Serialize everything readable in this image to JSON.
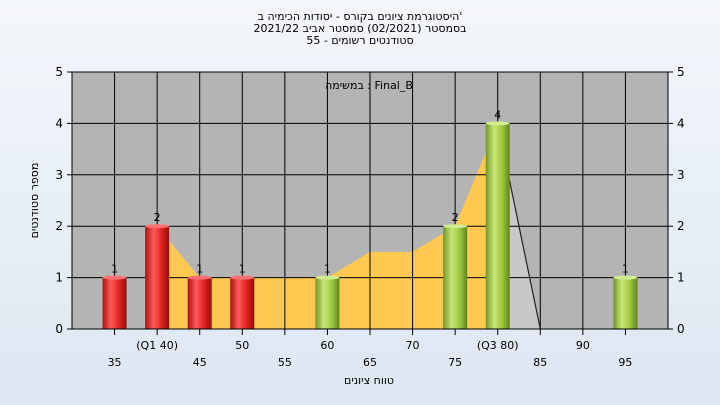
{
  "title_lines": [
    "היסטוגרמת ציונים בקורס - יסודות הכימיה ב'",
    "בסמסטר  (02/2021)  סמסטר אביב 2021/22",
    "סטודנטים רשומים - 55"
  ],
  "chart_data": {
    "type": "bar",
    "title": "היסטוגרמת ציונים בקורס - יסודות הכימיה ב' בסמסטר (02/2021) סמסטר אביב 2021/22 סטודנטים רשומים - 55",
    "xlabel": "טווח ציונים",
    "ylabel": "מספר סטודנטים",
    "annotation": "במשימה : Final_B",
    "ylim": [
      0,
      5
    ],
    "y_ticks": [
      0,
      1,
      2,
      3,
      4,
      5
    ],
    "x_ticks": [
      {
        "x": 35,
        "label": "35"
      },
      {
        "x": 40,
        "label": "(Q1 40)"
      },
      {
        "x": 45,
        "label": "45"
      },
      {
        "x": 50,
        "label": "50"
      },
      {
        "x": 55,
        "label": "55"
      },
      {
        "x": 60,
        "label": "60"
      },
      {
        "x": 65,
        "label": "65"
      },
      {
        "x": 70,
        "label": "70"
      },
      {
        "x": 75,
        "label": "75"
      },
      {
        "x": 80,
        "label": "(Q3 80)"
      },
      {
        "x": 85,
        "label": "85"
      },
      {
        "x": 90,
        "label": "90"
      },
      {
        "x": 95,
        "label": "95"
      }
    ],
    "bars": [
      {
        "x": 35,
        "value": 1,
        "label": "1",
        "color": "red"
      },
      {
        "x": 40,
        "value": 2,
        "label": "2",
        "color": "red"
      },
      {
        "x": 45,
        "value": 1,
        "label": "1",
        "color": "red"
      },
      {
        "x": 50,
        "value": 1,
        "label": "1",
        "color": "red"
      },
      {
        "x": 60,
        "value": 1,
        "label": "1",
        "color": "green"
      },
      {
        "x": 75,
        "value": 2,
        "label": "2",
        "color": "green"
      },
      {
        "x": 80,
        "value": 4,
        "label": "4",
        "color": "green"
      },
      {
        "x": 95,
        "value": 1,
        "label": "1",
        "color": "green"
      }
    ],
    "area": {
      "x": [
        40,
        45,
        50,
        55,
        60,
        65,
        70,
        75,
        80
      ],
      "y": [
        2,
        1,
        1,
        1,
        1,
        1.5,
        1.5,
        2,
        4
      ],
      "color": "#ffc850"
    },
    "gray_band": {
      "x": [
        80,
        85
      ],
      "y_start": 4,
      "color": "#c8c8c8"
    },
    "line": {
      "x": [
        80,
        85
      ],
      "y": [
        4,
        0
      ]
    },
    "colors": {
      "plot_background": "#b4b4b4",
      "red_bar": "#e02020",
      "green_bar": "#9cc63c"
    }
  }
}
